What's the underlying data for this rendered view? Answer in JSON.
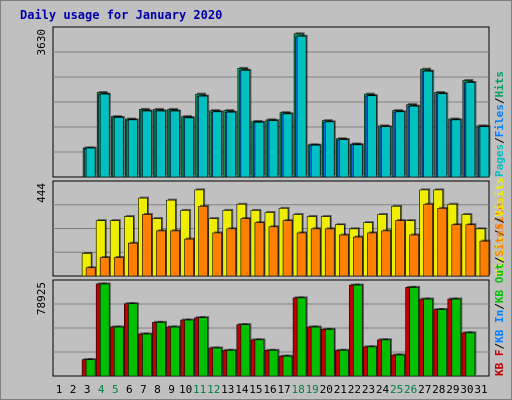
{
  "chart_data": {
    "type": "bar",
    "title": "Daily usage for January 2020",
    "days": [
      1,
      2,
      3,
      4,
      5,
      6,
      7,
      8,
      9,
      10,
      11,
      12,
      13,
      14,
      15,
      16,
      17,
      18,
      19,
      20,
      21,
      22,
      23,
      24,
      25,
      26,
      27,
      28,
      29,
      30,
      31
    ],
    "weekend_days": [
      4,
      5,
      11,
      12,
      18,
      19,
      25,
      26
    ],
    "colors": {
      "title": "#0000aa",
      "pages": "#00c0c0",
      "files": "#0080ff",
      "hits": "#00a060",
      "visits": "#eeee00",
      "sites": "#ff8000",
      "kb_in": "#00c000",
      "kb_out": "#c00000",
      "weekend": "#008040",
      "day": "#000000",
      "frame": "#c0c0c0",
      "panel": "#c0c0c0"
    },
    "panels": [
      {
        "id": "hits",
        "max_label": "3630",
        "max": 3630,
        "legend": [
          {
            "text": "Pages",
            "color": "#00c0c0"
          },
          {
            "text": "/",
            "color": "#000000"
          },
          {
            "text": "Files",
            "color": "#0080ff"
          },
          {
            "text": "/",
            "color": "#000000"
          },
          {
            "text": "Hits",
            "color": "#00a060"
          }
        ],
        "series": [
          {
            "name": "Hits",
            "color": "#00a060",
            "values": [
              0,
              0,
              720,
              2100,
              1500,
              1440,
              1680,
              1680,
              1680,
              1500,
              2060,
              1650,
              1650,
              2700,
              1380,
              1420,
              1600,
              3560,
              800,
              1400,
              950,
              820,
              2060,
              1270,
              1650,
              1800,
              2680,
              2100,
              1440,
              2400,
              1270
            ]
          },
          {
            "name": "Files",
            "color": "#0080ff",
            "values": [
              0,
              0,
              700,
              2050,
              1470,
              1410,
              1640,
              1640,
              1640,
              1470,
              2000,
              1610,
              1610,
              2640,
              1350,
              1390,
              1560,
              3480,
              780,
              1360,
              920,
              800,
              2010,
              1240,
              1610,
              1760,
              2620,
              2060,
              1410,
              2340,
              1240
            ]
          },
          {
            "name": "Pages",
            "color": "#00c0c0",
            "values": [
              0,
              0,
              720,
              2060,
              1480,
              1420,
              1640,
              1640,
              1640,
              1470,
              2010,
              1620,
              1610,
              2650,
              1360,
              1400,
              1570,
              3500,
              790,
              1370,
              930,
              800,
              2020,
              1250,
              1620,
              1760,
              2630,
              2070,
              1420,
              2350,
              1250
            ]
          }
        ]
      },
      {
        "id": "visits",
        "max_label": "444",
        "max": 444,
        "legend": [
          {
            "text": "Visits",
            "color": "#eeee00"
          },
          {
            "text": "/",
            "color": "#000000"
          },
          {
            "text": "Sites",
            "color": "#ff8000"
          }
        ],
        "series": [
          {
            "name": "Visits",
            "color": "#eeee00",
            "values": [
              0,
              0,
              110,
              270,
              270,
              290,
              380,
              280,
              370,
              320,
              420,
              280,
              320,
              350,
              320,
              310,
              330,
              300,
              290,
              290,
              250,
              230,
              260,
              300,
              340,
              270,
              420,
              420,
              350,
              300,
              230
            ]
          },
          {
            "name": "Sites",
            "color": "#ff8000",
            "values": [
              0,
              0,
              40,
              90,
              90,
              160,
              300,
              220,
              220,
              180,
              340,
              210,
              230,
              280,
              260,
              240,
              270,
              210,
              230,
              230,
              200,
              190,
              210,
              220,
              270,
              200,
              350,
              330,
              250,
              250,
              170
            ]
          }
        ]
      },
      {
        "id": "kbytes",
        "max_label": "78925",
        "max": 78925,
        "legend": [
          {
            "text": "KB F",
            "color": "#c00000"
          },
          {
            "text": "/",
            "color": "#000000"
          },
          {
            "text": "KB In",
            "color": "#0080ff"
          },
          {
            "text": "/",
            "color": "#000000"
          },
          {
            "text": "KB Out",
            "color": "#00c000"
          },
          {
            "text": "/",
            "color": "#000000"
          },
          {
            "text": "Sites",
            "color": "#ff8000"
          },
          {
            "text": "/",
            "color": "#000000"
          },
          {
            "text": "Visits",
            "color": "#eeee00"
          }
        ],
        "series": [
          {
            "name": "KB F",
            "color": "#c00000",
            "values": [
              0,
              0,
              14000,
              78925,
              42000,
              62000,
              36000,
              46000,
              42000,
              48000,
              50000,
              24000,
              22000,
              44000,
              31000,
              22000,
              17000,
              67000,
              42000,
              40000,
              22000,
              78000,
              25000,
              31000,
              18000,
              76000,
              66000,
              57000,
              66000,
              37000,
              0
            ]
          },
          {
            "name": "KB Out",
            "color": "#00c000",
            "values": [
              0,
              0,
              14000,
              78925,
              42000,
              62000,
              36000,
              46000,
              42000,
              48000,
              50000,
              24000,
              22000,
              44000,
              31000,
              22000,
              17000,
              67000,
              42000,
              40000,
              22000,
              78000,
              25000,
              31000,
              18000,
              76000,
              66000,
              57000,
              66000,
              37000,
              0
            ]
          }
        ]
      }
    ]
  }
}
